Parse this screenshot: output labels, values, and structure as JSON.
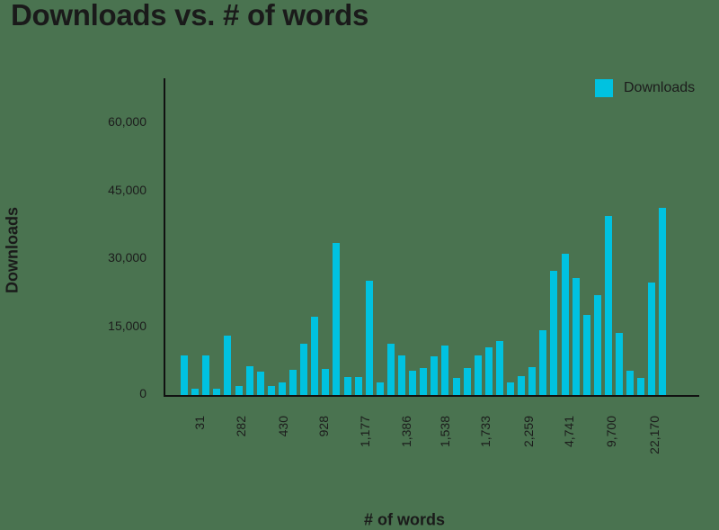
{
  "chart_data": {
    "type": "bar",
    "title": "Downloads vs. # of words",
    "xlabel": "# of words",
    "ylabel": "Downloads",
    "ylim": [
      0,
      70000
    ],
    "yticks": [
      "0",
      "15,000",
      "30,000",
      "45,000",
      "60,000"
    ],
    "ytick_values": [
      0,
      15000,
      30000,
      45000,
      60000
    ],
    "xtick_labels": [
      "31",
      "282",
      "430",
      "928",
      "1,177",
      "1,386",
      "1,538",
      "1,733",
      "2,259",
      "4,741",
      "9,700",
      "22,170"
    ],
    "grid": false,
    "legend_position": "top-right",
    "series": [
      {
        "name": "Downloads",
        "color": "#00c2e0",
        "values": [
          8700,
          1400,
          8700,
          1400,
          13100,
          2000,
          6400,
          5200,
          2000,
          2800,
          5600,
          11300,
          17300,
          5800,
          33600,
          4000,
          4000,
          25200,
          2800,
          11300,
          8700,
          5400,
          6000,
          8500,
          10900,
          3800,
          6000,
          8700,
          10500,
          11900,
          2800,
          4200,
          6200,
          14300,
          27400,
          31200,
          25800,
          17700,
          22100,
          39600,
          13700,
          5400,
          3800,
          24800,
          41400
        ]
      }
    ]
  },
  "legend": {
    "label": "Downloads"
  },
  "colors": {
    "background": "#4a7350",
    "bar": "#00c2e0",
    "axis": "#111111",
    "text": "#1c1c1c"
  }
}
